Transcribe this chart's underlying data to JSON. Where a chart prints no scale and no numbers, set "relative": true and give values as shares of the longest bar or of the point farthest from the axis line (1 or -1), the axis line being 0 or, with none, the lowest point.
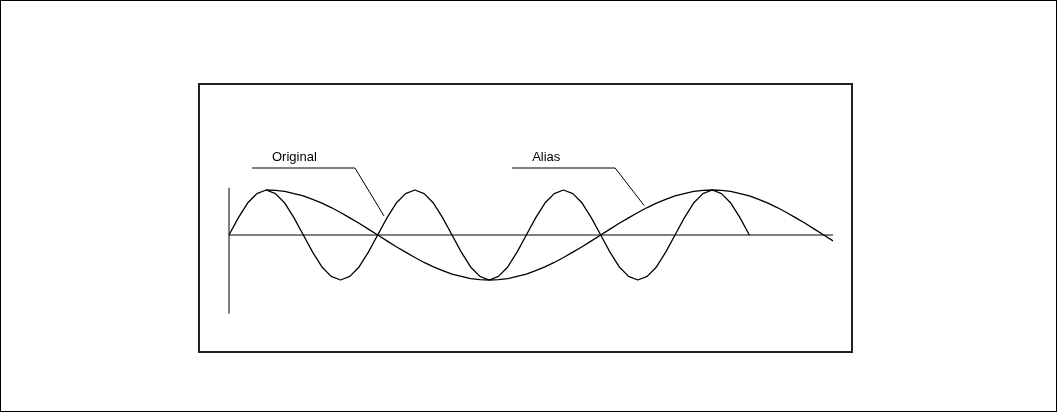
{
  "chart_data": {
    "type": "line",
    "relative": true,
    "legend": false,
    "marker": "none",
    "line_style": "solid",
    "categories": [
      null,
      null,
      null,
      null,
      null,
      null,
      null,
      null,
      null,
      null,
      null,
      null,
      null,
      null,
      null,
      null,
      null,
      null,
      null,
      null,
      null,
      null,
      null,
      null,
      null,
      null,
      null,
      null,
      null,
      null,
      null,
      null,
      null,
      null,
      null,
      null,
      null,
      null,
      null,
      null,
      null,
      null,
      null,
      null,
      null,
      null,
      null,
      null,
      null,
      null,
      null,
      null,
      null,
      null,
      null,
      null,
      null,
      null,
      null,
      null,
      null,
      null,
      null,
      null,
      null,
      null
    ],
    "series": [
      {
        "name": "Original",
        "color": "#000000",
        "values": [
          0,
          0.38,
          0.71,
          0.92,
          1,
          0.92,
          0.71,
          0.38,
          0,
          -0.38,
          -0.71,
          -0.92,
          -1,
          -0.92,
          -0.71,
          -0.38,
          0,
          0.38,
          0.71,
          0.92,
          1,
          0.92,
          0.71,
          0.38,
          0,
          -0.38,
          -0.71,
          -0.92,
          -1,
          -0.92,
          -0.71,
          -0.38,
          0,
          0.38,
          0.71,
          0.92,
          1,
          0.92,
          0.71,
          0.38,
          0,
          -0.38,
          -0.71,
          -0.92,
          -1,
          -0.92,
          -0.71,
          -0.38,
          0,
          0.38,
          0.71,
          0.92,
          1,
          0.92,
          0.71,
          0.38,
          0,
          null,
          null,
          null,
          null,
          null,
          null,
          null,
          null,
          null
        ]
      },
      {
        "name": "Alias",
        "color": "#000000",
        "values": [
          null,
          null,
          null,
          null,
          1,
          0.99,
          0.97,
          0.92,
          0.87,
          0.79,
          0.71,
          0.61,
          0.5,
          0.38,
          0.26,
          0.13,
          0,
          -0.13,
          -0.26,
          -0.38,
          -0.5,
          -0.61,
          -0.71,
          -0.79,
          -0.87,
          -0.92,
          -0.97,
          -0.99,
          -1,
          -0.99,
          -0.97,
          -0.92,
          -0.87,
          -0.79,
          -0.71,
          -0.61,
          -0.5,
          -0.38,
          -0.26,
          -0.13,
          0,
          0.13,
          0.26,
          0.38,
          0.5,
          0.61,
          0.71,
          0.79,
          0.87,
          0.92,
          0.97,
          0.99,
          1,
          0.99,
          0.97,
          0.92,
          0.87,
          0.79,
          0.71,
          0.61,
          0.5,
          0.38,
          0.26,
          0.13,
          0,
          -0.13
        ]
      }
    ]
  }
}
